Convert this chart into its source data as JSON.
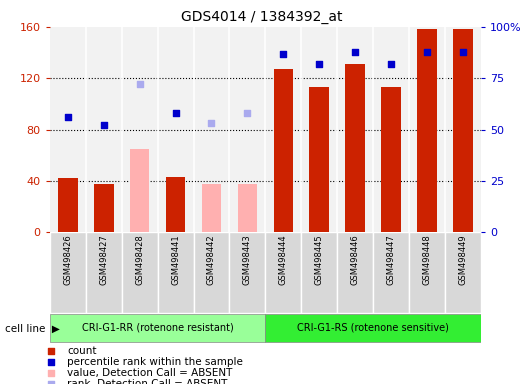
{
  "title": "GDS4014 / 1384392_at",
  "samples": [
    "GSM498426",
    "GSM498427",
    "GSM498428",
    "GSM498441",
    "GSM498442",
    "GSM498443",
    "GSM498444",
    "GSM498445",
    "GSM498446",
    "GSM498447",
    "GSM498448",
    "GSM498449"
  ],
  "absent": [
    false,
    false,
    true,
    false,
    true,
    true,
    false,
    false,
    false,
    false,
    false,
    false
  ],
  "count_values": [
    42,
    38,
    65,
    43,
    38,
    38,
    127,
    113,
    131,
    113,
    158,
    158
  ],
  "rank_values": [
    56,
    52,
    72,
    58,
    53,
    58,
    87,
    82,
    88,
    82,
    88,
    88
  ],
  "ylim_left": [
    0,
    160
  ],
  "ylim_right": [
    0,
    100
  ],
  "yticks_left": [
    0,
    40,
    80,
    120,
    160
  ],
  "ytick_labels_right": [
    "0",
    "25",
    "50",
    "75",
    "100%"
  ],
  "groups": [
    {
      "label": "CRI-G1-RR (rotenone resistant)",
      "color": "#99ff99",
      "start": 0,
      "end": 6
    },
    {
      "label": "CRI-G1-RS (rotenone sensitive)",
      "color": "#33ee33",
      "start": 6,
      "end": 12
    }
  ],
  "bar_color_present": "#cc2200",
  "bar_color_absent": "#ffb0b0",
  "rank_color_present": "#0000cc",
  "rank_color_absent": "#aaaaee",
  "bar_width": 0.55,
  "figsize": [
    5.23,
    3.84
  ],
  "dpi": 100
}
